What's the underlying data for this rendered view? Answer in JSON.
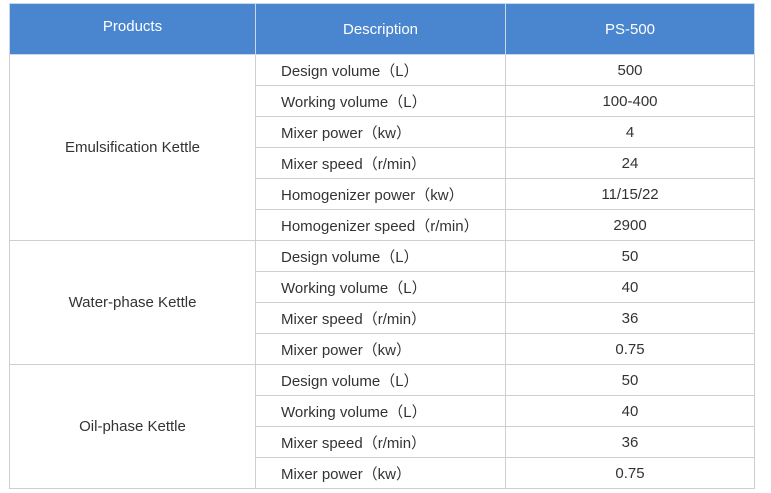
{
  "header": {
    "products": "Products",
    "description": "Description",
    "model": "PS-500"
  },
  "groups": [
    {
      "product": "Emulsification Kettle",
      "rows": [
        {
          "desc": "Design volume（L）",
          "value": "500"
        },
        {
          "desc": "Working volume（L）",
          "value": "100-400"
        },
        {
          "desc": "Mixer power（kw）",
          "value": "4"
        },
        {
          "desc": "Mixer speed（r/min）",
          "value": "24"
        },
        {
          "desc": "Homogenizer power（kw）",
          "value": "11/15/22"
        },
        {
          "desc": "Homogenizer speed（r/min）",
          "value": "2900"
        }
      ]
    },
    {
      "product": "Water-phase Kettle",
      "rows": [
        {
          "desc": "Design volume（L）",
          "value": "50"
        },
        {
          "desc": "Working volume（L）",
          "value": "40"
        },
        {
          "desc": "Mixer speed（r/min）",
          "value": "36"
        },
        {
          "desc": "Mixer power（kw）",
          "value": "0.75"
        }
      ]
    },
    {
      "product": "Oil-phase Kettle",
      "rows": [
        {
          "desc": "Design volume（L）",
          "value": "50"
        },
        {
          "desc": "Working volume（L）",
          "value": "40"
        },
        {
          "desc": "Mixer speed（r/min）",
          "value": "36"
        },
        {
          "desc": "Mixer power（kw）",
          "value": "0.75"
        }
      ]
    }
  ]
}
